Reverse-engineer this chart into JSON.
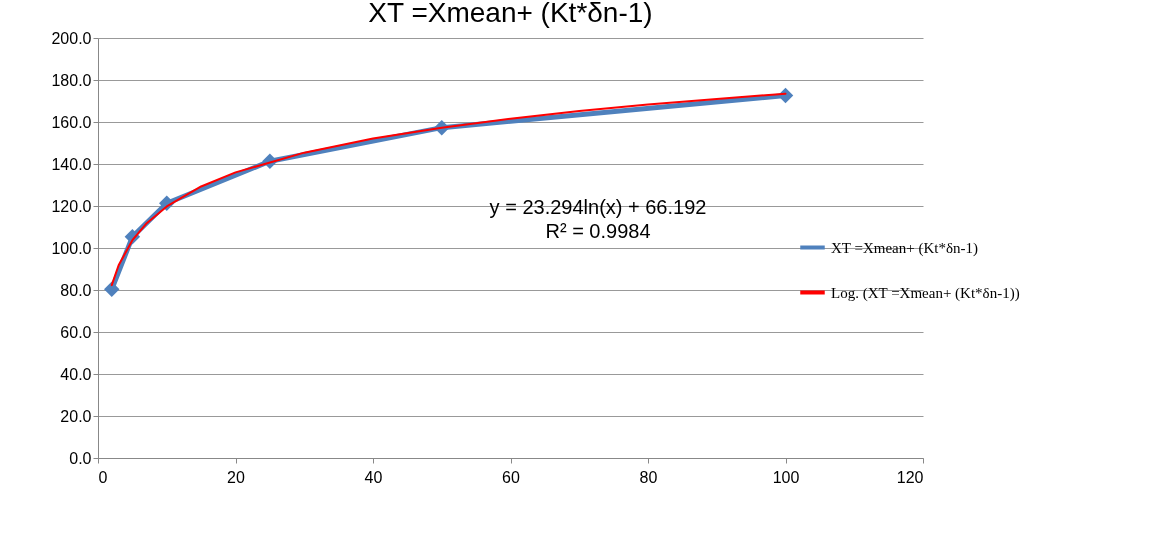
{
  "chart_data": {
    "type": "line",
    "title": "XT =Xmean+ (Kt*δn-1)",
    "series": [
      {
        "name": "XT =Xmean+ (Kt*δn-1)",
        "color": "#4f81bd",
        "x": [
          2,
          5,
          10,
          25,
          50,
          100
        ],
        "values": [
          80.3,
          105.3,
          121.3,
          141.3,
          157.3,
          172.6
        ],
        "marker": "diamond"
      },
      {
        "name": "Log. (XT =Xmean+ (Kt*δn-1))",
        "color": "#ff0000",
        "type": "line",
        "marker": "none",
        "x": [
          2,
          3,
          5,
          7,
          10,
          15,
          20,
          30,
          40,
          50,
          60,
          70,
          80,
          90,
          100
        ],
        "values": [
          82.3,
          91.8,
          103.7,
          111.5,
          119.8,
          129.3,
          136,
          145.4,
          152.1,
          157.3,
          161.6,
          165.2,
          168.3,
          171,
          173.5
        ]
      }
    ],
    "xlim": [
      0,
      120
    ],
    "xticks": [
      0,
      20,
      40,
      60,
      80,
      100,
      120
    ],
    "ylim": [
      0,
      200
    ],
    "yticks": [
      {
        "value": 0,
        "label": "0.0"
      },
      {
        "value": 20,
        "label": "20.0"
      },
      {
        "value": 40,
        "label": "40.0"
      },
      {
        "value": 60,
        "label": "60.0"
      },
      {
        "value": 80,
        "label": "80.0"
      },
      {
        "value": 100,
        "label": "100.0"
      },
      {
        "value": 120,
        "label": "120.0"
      },
      {
        "value": 140,
        "label": "140.0"
      },
      {
        "value": 160,
        "label": "160.0"
      },
      {
        "value": 180,
        "label": "180.0"
      },
      {
        "value": 200,
        "label": "200.0"
      }
    ],
    "grid": "y",
    "legend": "right",
    "annotations": [
      "y = 23.294ln(x) + 66.192",
      "R² = 0.9984"
    ]
  }
}
